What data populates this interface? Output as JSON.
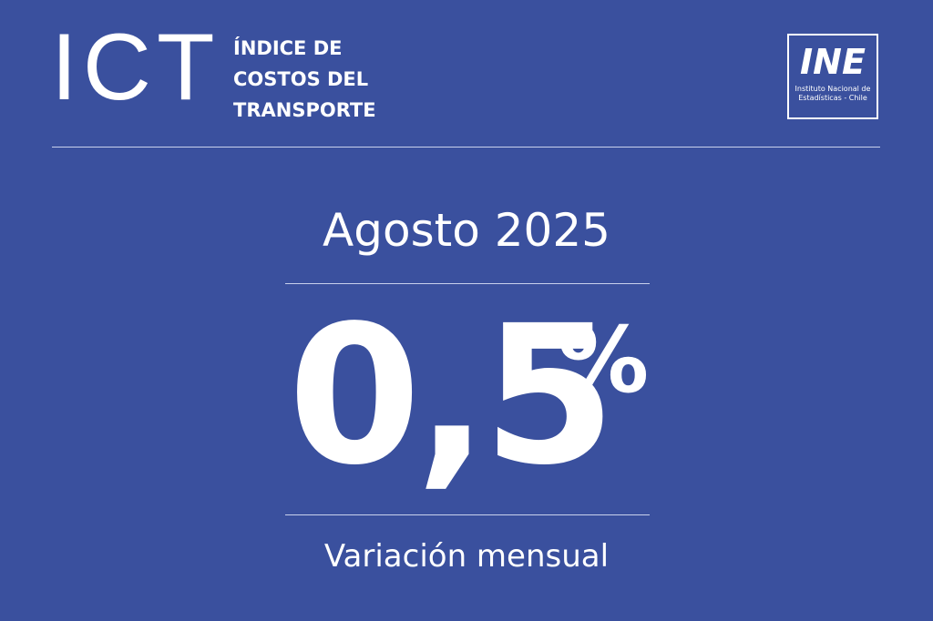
{
  "header": {
    "acronym": "ICT",
    "title_lines": [
      "ÍNDICE DE",
      "COSTOS DEL",
      "TRANSPORTE"
    ],
    "logo": {
      "mark": "INE",
      "caption_lines": [
        "Instituto Nacional de",
        "Estadísticas - Chile"
      ]
    }
  },
  "period": "Agosto 2025",
  "figure": {
    "value": "0,5",
    "unit": "%"
  },
  "caption": "Variación mensual"
}
